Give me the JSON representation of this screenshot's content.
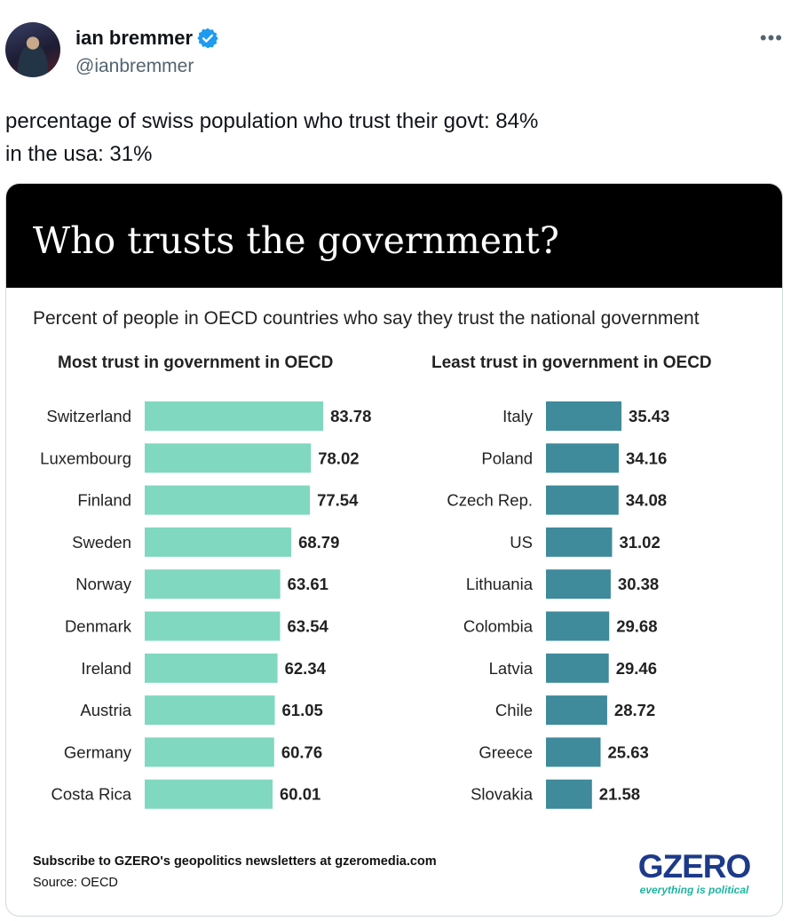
{
  "tweet": {
    "author_name": "ian bremmer",
    "handle": "@ianbremmer",
    "more_icon": "more-horizontal-icon",
    "verified_icon": "verified-badge-icon",
    "text_line1": "percentage of swiss population who trust their govt: 84%",
    "text_line2": "in the usa: 31%"
  },
  "card": {
    "title": "Who trusts the government?",
    "subtitle": "Percent of people in OECD countries who say they trust the national government",
    "footer": "Subscribe to GZERO's geopolitics newsletters at gzeromedia.com",
    "source": "Source: OECD",
    "logo_text": "GZERO",
    "logo_tagline": "everything is political"
  },
  "chart_data": [
    {
      "type": "bar",
      "orientation": "horizontal",
      "title": "Most trust in government in OECD",
      "categories": [
        "Switzerland",
        "Luxembourg",
        "Finland",
        "Sweden",
        "Norway",
        "Denmark",
        "Ireland",
        "Austria",
        "Germany",
        "Costa Rica"
      ],
      "values": [
        83.78,
        78.02,
        77.54,
        68.79,
        63.61,
        63.54,
        62.34,
        61.05,
        60.76,
        60.01
      ],
      "color": "#7fd8bf",
      "xlim": [
        0,
        100
      ]
    },
    {
      "type": "bar",
      "orientation": "horizontal",
      "title": "Least trust in government in OECD",
      "categories": [
        "Italy",
        "Poland",
        "Czech Rep.",
        "US",
        "Lithuania",
        "Colombia",
        "Latvia",
        "Chile",
        "Greece",
        "Slovakia"
      ],
      "values": [
        35.43,
        34.16,
        34.08,
        31.02,
        30.38,
        29.68,
        29.46,
        28.72,
        25.63,
        21.58
      ],
      "color": "#3f8a9b",
      "xlim": [
        0,
        100
      ]
    }
  ]
}
